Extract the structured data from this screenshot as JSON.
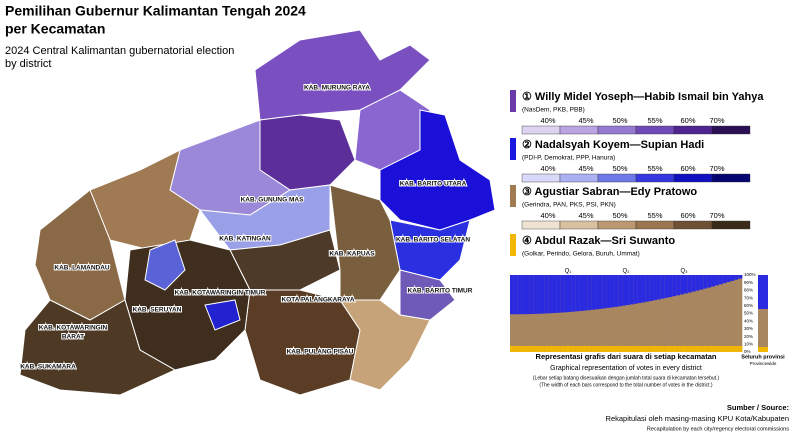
{
  "header": {
    "title_lines": [
      "Pemilihan Gubernur Kalimantan Tengah 2024",
      "per Kecamatan"
    ],
    "subtitle_lines": [
      "2024 Central Kalimantan gubernatorial election",
      "by district"
    ]
  },
  "map": {
    "regency_labels": [
      "KAB. MURUNG RAYA",
      "KAB. BARITO UTARA",
      "KAB. GUNUNG MAS",
      "KAB. KATINGAN",
      "KAB. BARITO SELATAN",
      "KAB. LAMANDAU",
      "KAB. KAPUAS",
      "KAB. KOTAWARINGIN TIMUR",
      "KAB. BARITO TIMUR",
      "KOTA PALANGKARAYA",
      "KAB. SERUYAN",
      "KAB. KOTAWARINGIN",
      "BARAT",
      "KAB. PULANG PISAU",
      "KAB. SUKAMARA"
    ]
  },
  "legend": {
    "candidates": [
      {
        "name": "① Willy Midel Yoseph—Habib Ismail bin Yahya",
        "parties": "(NasDem, PKB, PBB)"
      },
      {
        "name": "② Nadalsyah Koyem—Supian Hadi",
        "parties": "(PDI-P, Demokrat, PPP, Hanura)"
      },
      {
        "name": "③ Agustiar Sabran—Edy Pratowo",
        "parties": "(Gerindra, PAN, PKS, PSI, PKN)"
      },
      {
        "name": "④ Abdul Razak—Sri Suwanto",
        "parties": "(Golkar, Perindo, Gelora, Buruh, Ummat)"
      }
    ],
    "scale_labels": [
      "40%",
      "45%",
      "50%",
      "55%",
      "60%",
      "70%"
    ]
  },
  "inset": {
    "quartiles": [
      "Q₁",
      "Q₂",
      "Q₃"
    ],
    "y_labels": [
      "100%",
      "90%",
      "80%",
      "70%",
      "60%",
      "50%",
      "40%",
      "30%",
      "20%",
      "10%",
      "0%"
    ],
    "provincewide": [
      "Seluruh provinsi",
      "Provincewide"
    ],
    "caption": [
      "Representasi grafis dari suara di setiap kecamatan",
      "Graphical representation of votes in every district",
      "(Lebar setiap batang disesuaikan dengan jumlah total suara di kecamatan tersebut.)",
      "(The width of each bars correspond to the total number of votes in the district.)"
    ]
  },
  "source": {
    "heading": "Sumber / Source:",
    "lines": [
      "Rekapitulasi oleh masing-masing KPU Kota/Kabupaten",
      "Recapitulation by each city/regency electoral commissions"
    ]
  }
}
